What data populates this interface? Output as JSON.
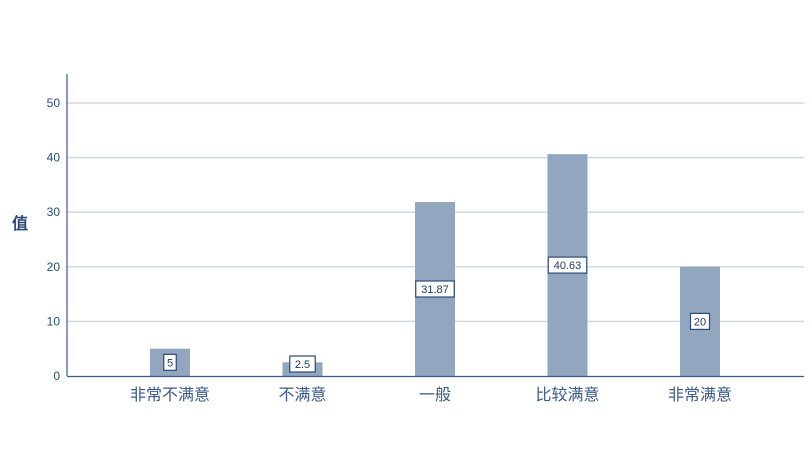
{
  "chart_data": {
    "type": "bar",
    "categories": [
      "非常不满意",
      "不满意",
      "一般",
      "比较满意",
      "非常满意"
    ],
    "values": [
      5,
      2.5,
      31.87,
      40.63,
      20
    ],
    "data_labels": [
      "5",
      "2.5",
      "31.87",
      "40.63",
      "20"
    ],
    "title": "",
    "xlabel": "",
    "ylabel": "值",
    "ylim": [
      0,
      55
    ],
    "yticks": [
      0,
      10,
      20,
      30,
      40,
      50
    ],
    "grid": true,
    "colors": {
      "bar": "#92a6bf",
      "axis": "#3a5a8a",
      "grid": "#cfd8e4"
    }
  }
}
